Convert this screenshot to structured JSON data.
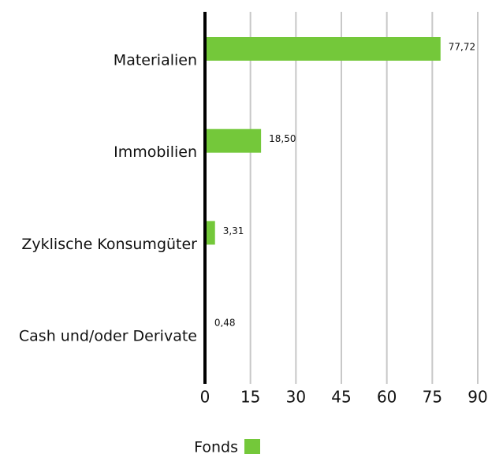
{
  "chart_data": {
    "type": "bar",
    "orientation": "horizontal",
    "categories": [
      "Materialien",
      "Immobilien",
      "Zyklische Konsumgüter",
      "Cash und/oder Derivate"
    ],
    "series": [
      {
        "name": "Fonds",
        "color": "#74c83a",
        "values": [
          77.72,
          18.5,
          3.31,
          0.48
        ],
        "value_labels": [
          "77,72",
          "18,50",
          "3,31",
          "0,48"
        ]
      }
    ],
    "xlim": [
      0,
      90
    ],
    "xticks": [
      0,
      15,
      30,
      45,
      60,
      75,
      90
    ],
    "grid": true,
    "legend": "bottom"
  }
}
